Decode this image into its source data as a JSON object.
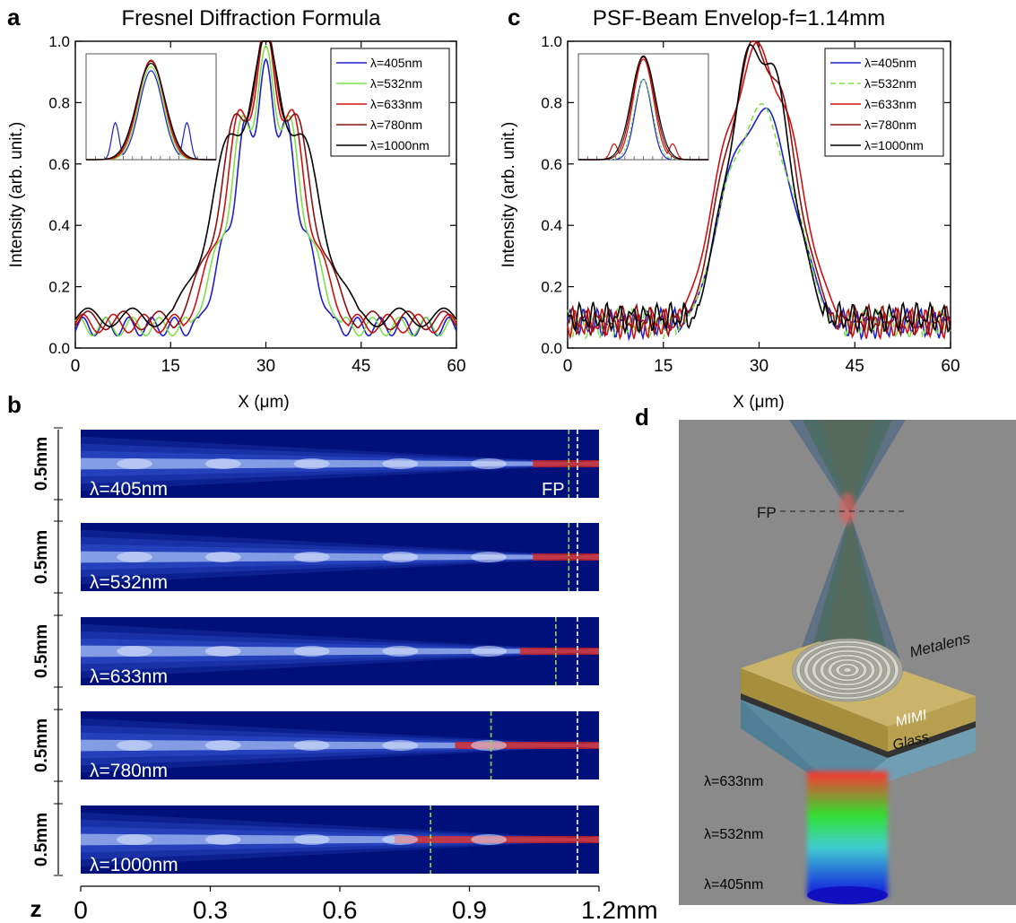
{
  "panel_letters": {
    "a": "a",
    "b": "b",
    "c": "c",
    "d": "d"
  },
  "chart_data": [
    {
      "panel": "a",
      "type": "line",
      "title": "Fresnel Diffraction Formula",
      "xlabel": "X (μm)",
      "ylabel": "Intensity (arb. unit.)",
      "xlim": [
        0,
        60
      ],
      "ylim": [
        0,
        1.0
      ],
      "xticks": [
        "0",
        "15",
        "30",
        "45",
        "60"
      ],
      "yticks": [
        "0.0",
        "0.2",
        "0.4",
        "0.6",
        "0.8",
        "1.0"
      ],
      "legend_position": "top-right",
      "inset": "top-left",
      "series": [
        {
          "name": "λ=405nm",
          "color": "#1f1fd0",
          "peak": 0.84,
          "width": 5.0,
          "period": 3.6,
          "floor": 0.04
        },
        {
          "name": "λ=532nm",
          "color": "#7ee04a",
          "peak": 0.88,
          "width": 5.4,
          "period": 4.2,
          "floor": 0.04
        },
        {
          "name": "λ=633nm",
          "color": "#d01010",
          "peak": 0.93,
          "width": 5.8,
          "period": 4.8,
          "floor": 0.05
        },
        {
          "name": "λ=780nm",
          "color": "#8b1010",
          "peak": 0.94,
          "width": 6.4,
          "period": 5.6,
          "floor": 0.06
        },
        {
          "name": "λ=1000nm",
          "color": "#000000",
          "peak": 0.91,
          "width": 7.2,
          "period": 7.0,
          "floor": 0.07
        }
      ]
    },
    {
      "panel": "c",
      "type": "line",
      "title": "PSF-Beam Envelop-f=1.14mm",
      "xlabel": "X (μm)",
      "ylabel": "Intensity (arb. unit.)",
      "xlim": [
        0,
        60
      ],
      "ylim": [
        0,
        1.0
      ],
      "xticks": [
        "0",
        "15",
        "30",
        "45",
        "60"
      ],
      "yticks": [
        "0.0",
        "0.2",
        "0.4",
        "0.6",
        "0.8",
        "1.0"
      ],
      "legend_position": "top-right",
      "inset": "top-left",
      "series": [
        {
          "name": "λ=405nm",
          "color": "#1f1fd0",
          "dashed": false,
          "peak": 0.76,
          "width": 6.2,
          "floor": 0.06
        },
        {
          "name": "λ=532nm",
          "color": "#7ee04a",
          "dashed": true,
          "peak": 0.76,
          "width": 6.2,
          "floor": 0.06
        },
        {
          "name": "λ=633nm",
          "color": "#d01010",
          "dashed": false,
          "peak": 0.95,
          "width": 6.6,
          "floor": 0.06
        },
        {
          "name": "λ=780nm",
          "color": "#8b1010",
          "dashed": false,
          "peak": 0.97,
          "width": 6.0,
          "floor": 0.07
        },
        {
          "name": "λ=1000nm",
          "color": "#000000",
          "dashed": false,
          "peak": 0.98,
          "width": 5.4,
          "floor": 0.08
        }
      ]
    },
    {
      "panel": "b",
      "type": "heatmap",
      "z_label": "z",
      "z_ticks": [
        "0",
        "0.3",
        "0.6",
        "0.9",
        "1.2mm"
      ],
      "z_range": [
        0,
        1.2
      ],
      "strip_height_label": "0.5mm",
      "fp_label": "FP",
      "strips": [
        {
          "label": "λ=405nm",
          "green_line_z": 1.13,
          "white_line_z": 1.15
        },
        {
          "label": "λ=532nm",
          "green_line_z": 1.13,
          "white_line_z": 1.15
        },
        {
          "label": "λ=633nm",
          "green_line_z": 1.1,
          "white_line_z": 1.15
        },
        {
          "label": "λ=780nm",
          "green_line_z": 0.95,
          "white_line_z": 1.15
        },
        {
          "label": "λ=1000nm",
          "green_line_z": 0.81,
          "white_line_z": 1.15
        }
      ]
    }
  ],
  "diagram": {
    "fp_label": "FP",
    "metalens_label": "Metalens",
    "mimi_label": "MIMI",
    "glass_label": "Glass",
    "beam_labels": [
      "λ=633nm",
      "λ=532nm",
      "λ=405nm"
    ]
  }
}
